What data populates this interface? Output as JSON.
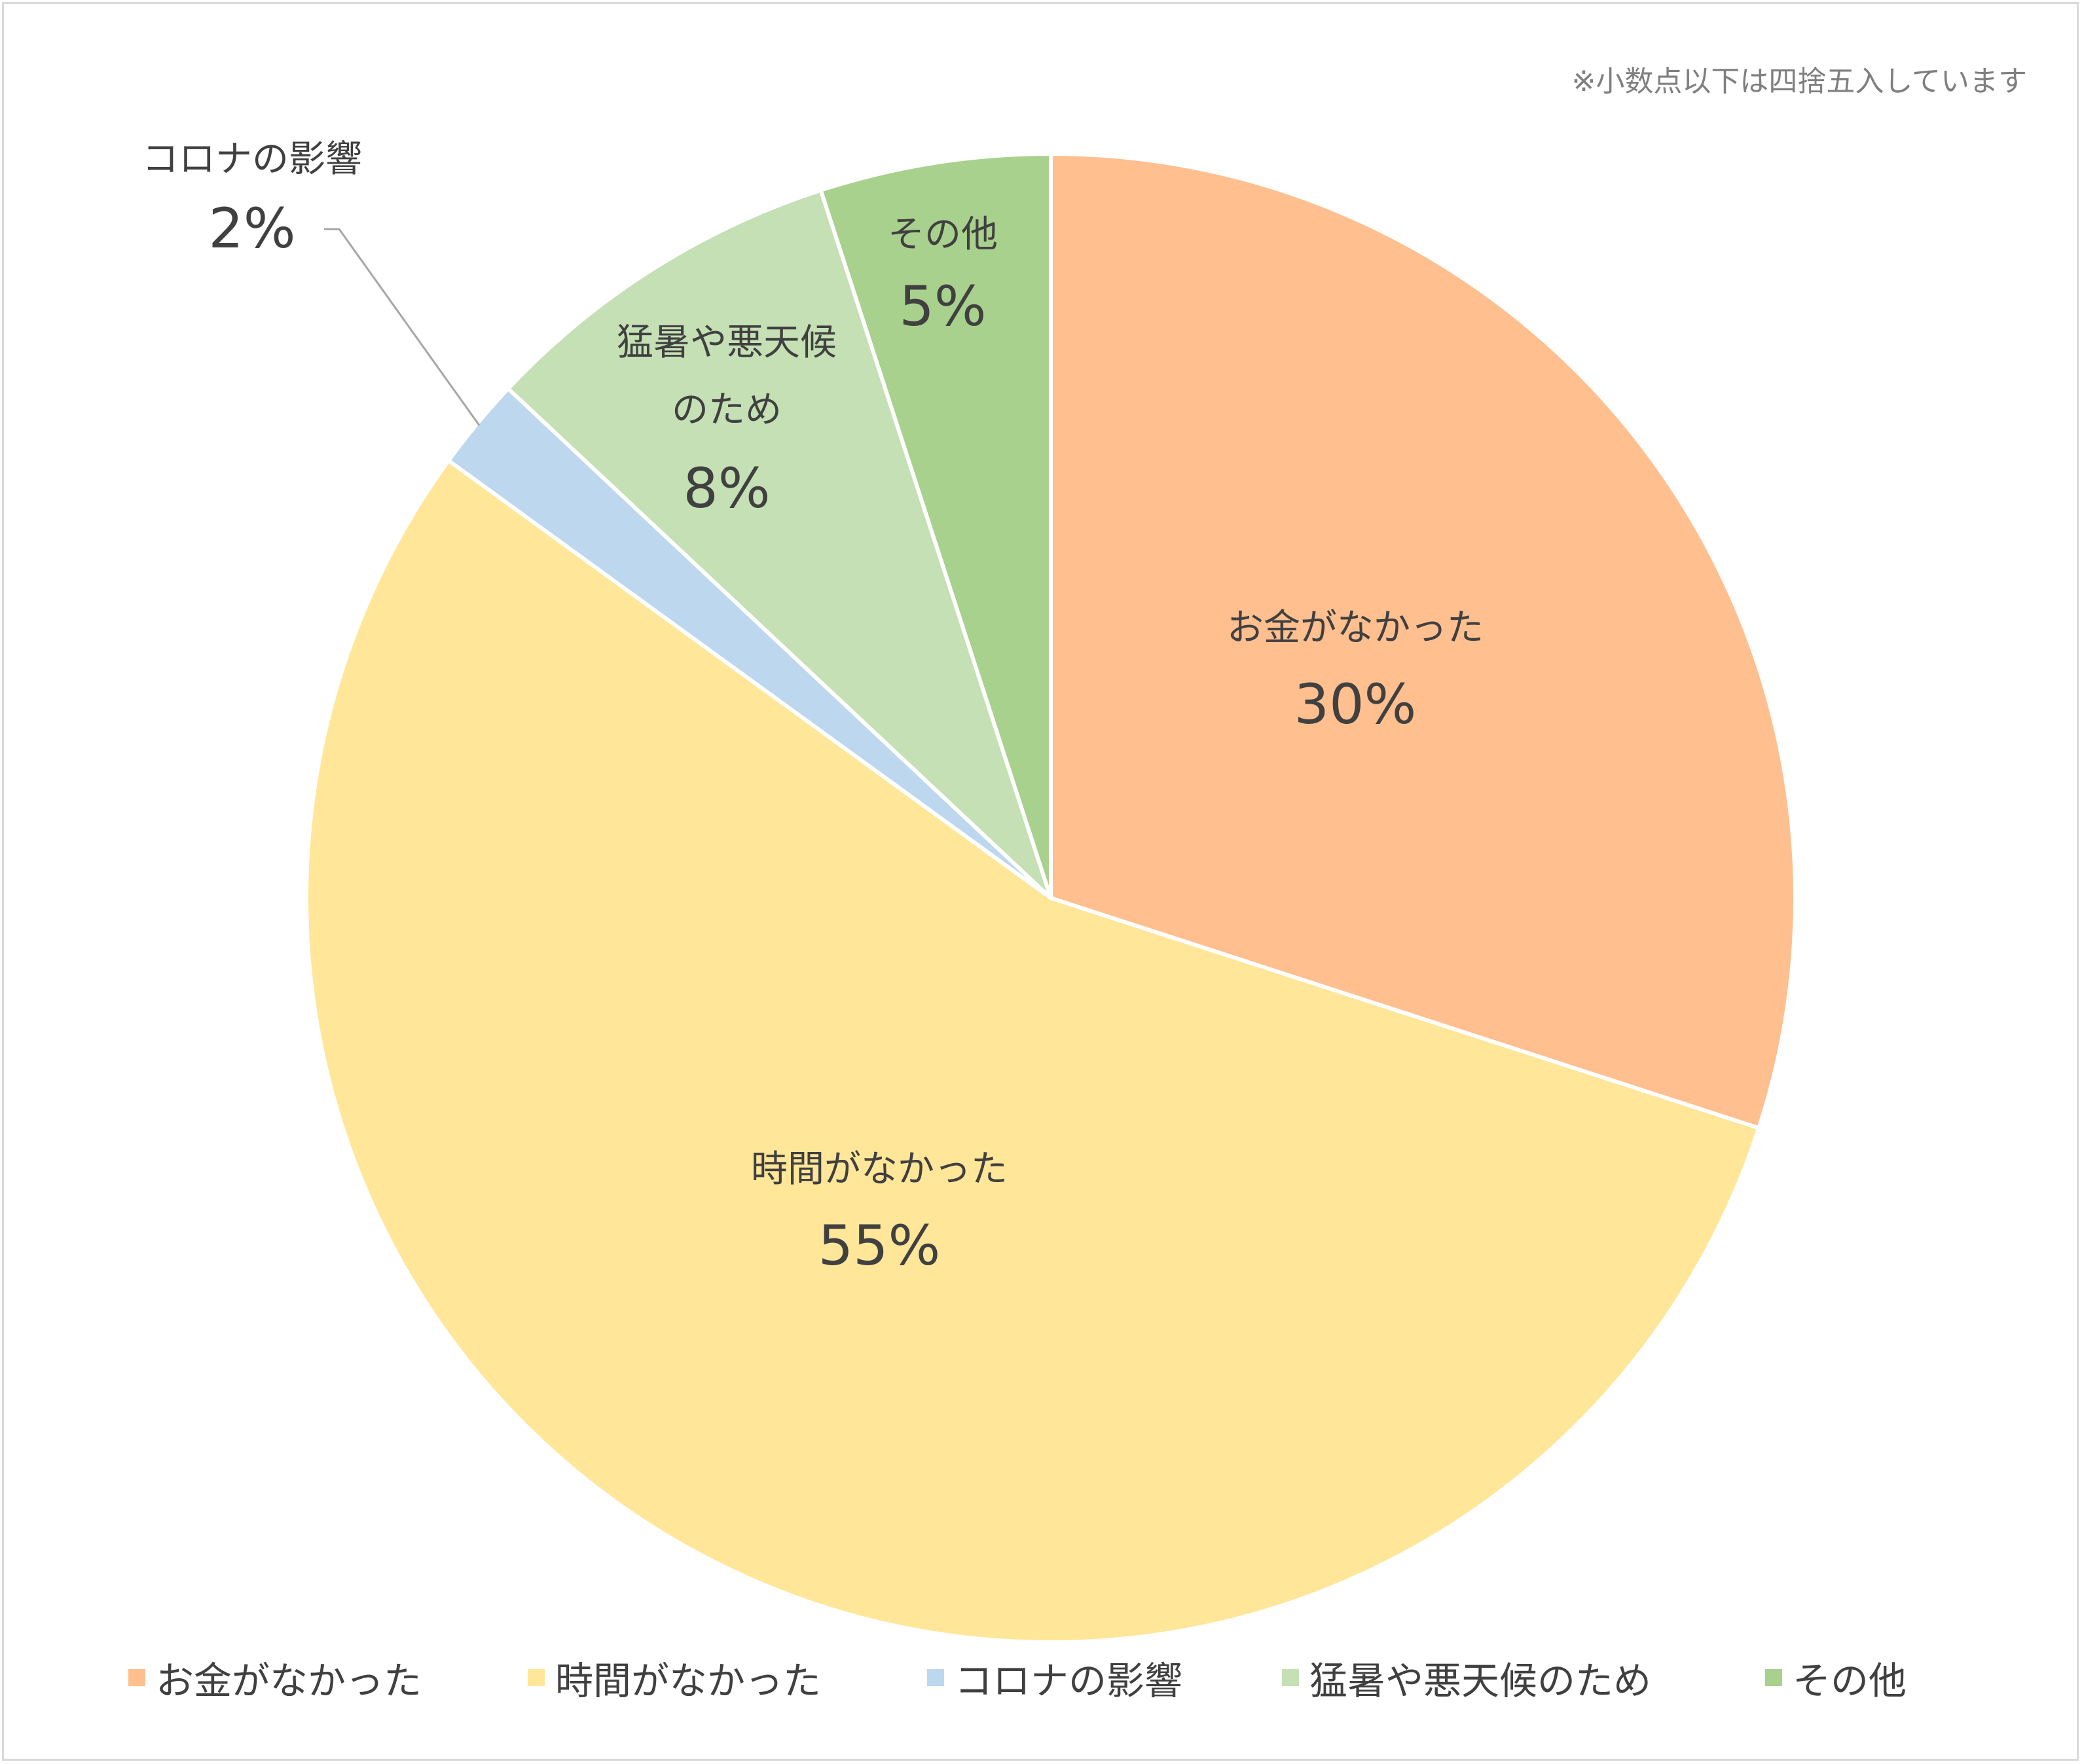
{
  "note": "※小数点以下は四捨五入しています",
  "chart_data": {
    "type": "pie",
    "title": "",
    "start_angle_deg": 0,
    "direction": "clockwise",
    "slices": [
      {
        "label": "お金がなかった",
        "value": 30,
        "value_label": "30%",
        "color": "#FFBF8F"
      },
      {
        "label": "時間がなかった",
        "value": 55,
        "value_label": "55%",
        "color": "#FFE699"
      },
      {
        "label": "コロナの影響",
        "value": 2,
        "value_label": "2%",
        "color": "#BDD7EE"
      },
      {
        "label": "猛暑や悪天候のため",
        "value": 8,
        "value_label": "8%",
        "color": "#C5E0B4"
      },
      {
        "label": "その他",
        "value": 5,
        "value_label": "5%",
        "color": "#A9D18E"
      }
    ],
    "legend": {
      "position": "bottom",
      "items": [
        "お金がなかった",
        "時間がなかった",
        "コロナの影響",
        "猛暑や悪天候のため",
        "その他"
      ]
    }
  }
}
